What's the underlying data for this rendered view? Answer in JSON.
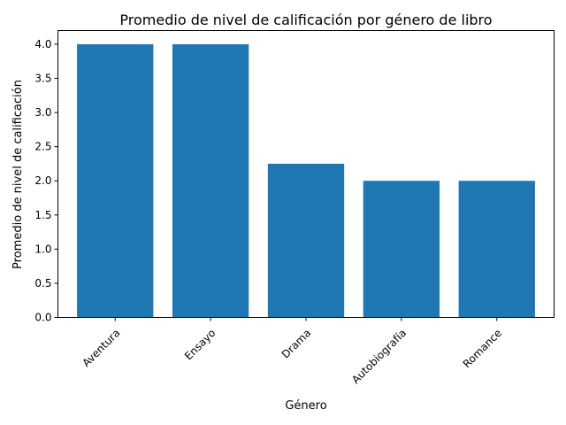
{
  "chart_data": {
    "type": "bar",
    "title": "Promedio de nivel de calificación por género de libro",
    "xlabel": "Género",
    "ylabel": "Promedio de nivel de calificación",
    "categories": [
      "Aventura",
      "Ensayo",
      "Drama",
      "Autobiografía",
      "Romance"
    ],
    "values": [
      4.0,
      4.0,
      2.25,
      2.0,
      2.0
    ],
    "ylim": [
      0,
      4.2
    ],
    "yticks": [
      "0.0",
      "0.5",
      "1.0",
      "1.5",
      "2.0",
      "2.5",
      "3.0",
      "3.5",
      "4.0"
    ],
    "bar_color": "#1f77b4",
    "grid": false,
    "legend": "none"
  }
}
